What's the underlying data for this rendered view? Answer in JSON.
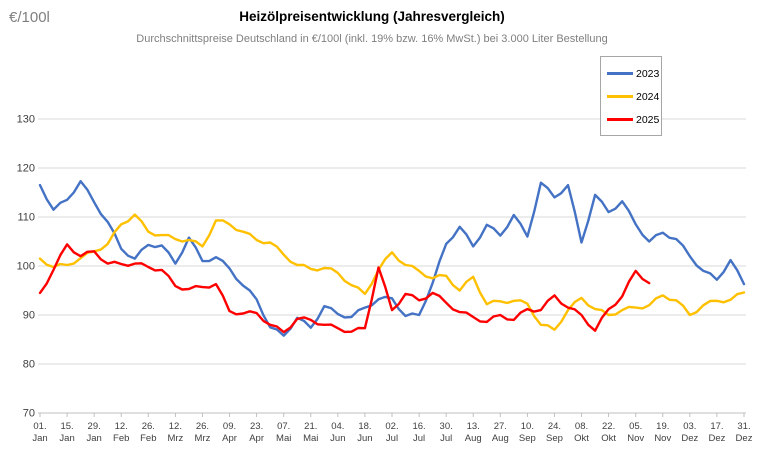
{
  "header": {
    "unit_label": "€/100l",
    "title": "Heizölpreisentwicklung (Jahresvergleich)",
    "subtitle": "Durchschnittspreise Deutschland in €/100l (inkl. 19% bzw. 16% MwSt.) bei 3.000 Liter Bestellung"
  },
  "legend": {
    "position": "top-right",
    "entries": [
      {
        "label": "2023",
        "color": "#4472C4"
      },
      {
        "label": "2024",
        "color": "#FFC000"
      },
      {
        "label": "2025",
        "color": "#FF0000"
      }
    ]
  },
  "chart_data": {
    "type": "line",
    "title": "Heizölpreisentwicklung (Jahresvergleich)",
    "subtitle": "Durchschnittspreise Deutschland in €/100l (inkl. 19% bzw. 16% MwSt.) bei 3.000 Liter Bestellung",
    "ylabel": "€/100l",
    "xlabel": "",
    "ylim": [
      70,
      135
    ],
    "y_ticks": [
      70,
      80,
      90,
      100,
      110,
      120,
      130
    ],
    "grid": true,
    "grid_color": "#D9D9D9",
    "axis_color": "#BFBFBF",
    "tick_label_color": "#404040",
    "x_unit": "day_of_year",
    "sample_interval_days": 7,
    "x_ticks": [
      {
        "day": 1,
        "top": "01.",
        "bottom": "Jan"
      },
      {
        "day": 15,
        "top": "15.",
        "bottom": "Jan"
      },
      {
        "day": 29,
        "top": "29.",
        "bottom": "Jan"
      },
      {
        "day": 43,
        "top": "12.",
        "bottom": "Feb"
      },
      {
        "day": 57,
        "top": "26.",
        "bottom": "Feb"
      },
      {
        "day": 71,
        "top": "12.",
        "bottom": "Mrz"
      },
      {
        "day": 85,
        "top": "26.",
        "bottom": "Mrz"
      },
      {
        "day": 99,
        "top": "09.",
        "bottom": "Apr"
      },
      {
        "day": 113,
        "top": "23.",
        "bottom": "Apr"
      },
      {
        "day": 127,
        "top": "07.",
        "bottom": "Mai"
      },
      {
        "day": 141,
        "top": "21.",
        "bottom": "Mai"
      },
      {
        "day": 155,
        "top": "04.",
        "bottom": "Jun"
      },
      {
        "day": 169,
        "top": "18.",
        "bottom": "Jun"
      },
      {
        "day": 183,
        "top": "02.",
        "bottom": "Jul"
      },
      {
        "day": 197,
        "top": "16.",
        "bottom": "Jul"
      },
      {
        "day": 211,
        "top": "30.",
        "bottom": "Jul"
      },
      {
        "day": 225,
        "top": "13.",
        "bottom": "Aug"
      },
      {
        "day": 239,
        "top": "27.",
        "bottom": "Aug"
      },
      {
        "day": 253,
        "top": "10.",
        "bottom": "Sep"
      },
      {
        "day": 267,
        "top": "24.",
        "bottom": "Sep"
      },
      {
        "day": 281,
        "top": "08.",
        "bottom": "Okt"
      },
      {
        "day": 295,
        "top": "22.",
        "bottom": "Okt"
      },
      {
        "day": 309,
        "top": "05.",
        "bottom": "Nov"
      },
      {
        "day": 323,
        "top": "19.",
        "bottom": "Nov"
      },
      {
        "day": 337,
        "top": "03.",
        "bottom": "Dez"
      },
      {
        "day": 351,
        "top": "17.",
        "bottom": "Dez"
      },
      {
        "day": 365,
        "top": "31.",
        "bottom": "Dez"
      }
    ],
    "series": [
      {
        "name": "2023",
        "color": "#4472C4",
        "start_day": 1,
        "values": [
          116.5,
          111.5,
          113.5,
          117.3,
          113.0,
          109.0,
          103.5,
          101.5,
          104.3,
          104.2,
          100.5,
          105.8,
          101.0,
          101.8,
          99.5,
          96.0,
          93.2,
          87.5,
          85.8,
          89.4,
          87.4,
          91.8,
          90.2,
          89.6,
          91.5,
          93.2,
          93.4,
          89.8,
          90.0,
          96.5,
          104.5,
          108.0,
          104.0,
          108.4,
          106.2,
          110.4,
          106.0,
          117.0,
          114.0,
          116.5,
          104.8,
          114.5,
          111.0,
          113.2,
          108.5,
          105.0,
          106.8,
          105.5,
          102.0,
          99.0,
          97.2,
          101.2,
          96.3
        ]
      },
      {
        "name": "2024",
        "color": "#FFC000",
        "start_day": 1,
        "values": [
          101.5,
          99.8,
          100.2,
          101.6,
          103.0,
          104.5,
          108.5,
          110.5,
          107.0,
          106.3,
          105.5,
          105.3,
          104.0,
          109.3,
          108.5,
          107.0,
          105.3,
          104.8,
          102.3,
          100.2,
          99.4,
          99.6,
          98.6,
          96.1,
          94.3,
          99.2,
          102.8,
          100.2,
          99.0,
          97.5,
          98.0,
          95.0,
          97.8,
          92.2,
          92.8,
          92.9,
          92.3,
          88.0,
          87.0,
          91.0,
          93.5,
          91.2,
          90.0,
          91.0,
          91.5,
          92.0,
          94.0,
          93.0,
          90.0,
          92.0,
          92.9,
          93.1,
          94.6
        ]
      },
      {
        "name": "2025",
        "color": "#FF0000",
        "start_day": 1,
        "values": [
          94.5,
          99.2,
          104.4,
          102.0,
          103.0,
          100.5,
          100.4,
          100.5,
          99.8,
          99.2,
          95.9,
          95.3,
          95.7,
          96.3,
          90.8,
          90.3,
          90.4,
          88.0,
          86.5,
          89.2,
          89.0,
          88.0,
          87.3,
          86.6,
          87.3,
          99.7,
          91.0,
          94.3,
          93.0,
          94.5,
          92.5,
          90.6,
          89.6,
          88.6,
          90.0,
          89.0,
          91.2,
          91.0,
          94.0,
          91.5,
          90.0,
          86.8,
          91.2,
          93.8,
          99.0,
          96.5
        ]
      }
    ],
    "legend_position": "top-right"
  }
}
